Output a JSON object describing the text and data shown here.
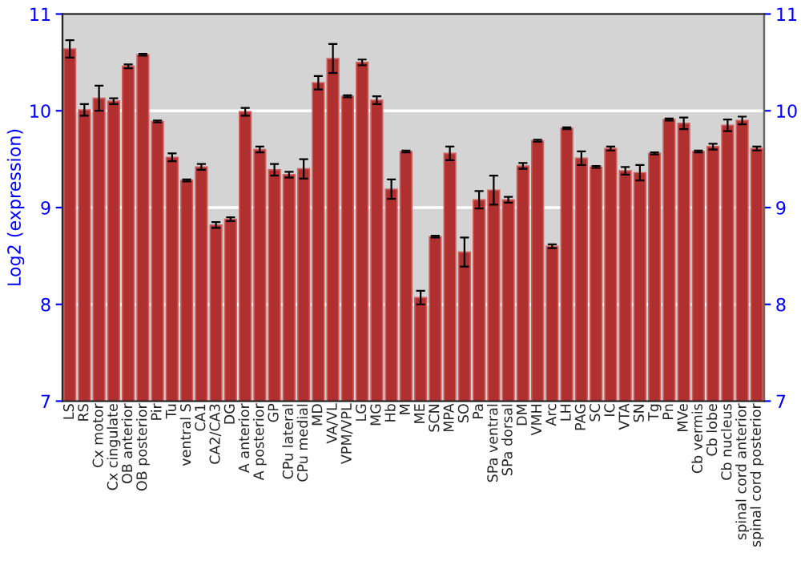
{
  "chart_data": {
    "type": "bar",
    "ylabel": "Log2 (expression)",
    "categories": [
      "LS",
      "RS",
      "Cx motor",
      "Cx cingulate",
      "OB anterior",
      "OB posterior",
      "Pir",
      "Tu",
      "ventral S",
      "CA1",
      "CA2/CA3",
      "DG",
      "A anterior",
      "A posterior",
      "GP",
      "CPu lateral",
      "CPu medial",
      "MD",
      "VA/VL",
      "VPM/VPL",
      "LG",
      "MG",
      "Hb",
      "M",
      "ME",
      "SCN",
      "MPA",
      "SO",
      "Pa",
      "SPa ventral",
      "SPa dorsal",
      "DM",
      "VMH",
      "Arc",
      "LH",
      "PAG",
      "SC",
      "IC",
      "VTA",
      "SN",
      "Tg",
      "Pn",
      "MVe",
      "Cb vermis",
      "Cb lobe",
      "Cb nucleus",
      "spinal cord anterior",
      "spinal cord posterior"
    ],
    "values": [
      10.64,
      10.01,
      10.13,
      10.1,
      10.46,
      10.58,
      9.89,
      9.52,
      9.28,
      9.42,
      8.82,
      8.88,
      9.99,
      9.6,
      9.39,
      9.34,
      9.4,
      10.29,
      10.54,
      10.15,
      10.5,
      10.11,
      9.19,
      9.58,
      8.07,
      8.7,
      9.56,
      8.54,
      9.08,
      9.18,
      9.08,
      9.43,
      9.69,
      8.6,
      9.82,
      9.51,
      9.42,
      9.61,
      9.38,
      9.36,
      9.56,
      9.91,
      9.87,
      9.58,
      9.63,
      9.85,
      9.9,
      9.61
    ],
    "errors": [
      0.09,
      0.06,
      0.13,
      0.03,
      0.02,
      0.01,
      0.01,
      0.04,
      0.01,
      0.03,
      0.03,
      0.02,
      0.04,
      0.03,
      0.06,
      0.03,
      0.1,
      0.07,
      0.15,
      0.01,
      0.03,
      0.04,
      0.1,
      0.01,
      0.07,
      0.01,
      0.07,
      0.15,
      0.09,
      0.15,
      0.03,
      0.03,
      0.01,
      0.02,
      0.01,
      0.07,
      0.01,
      0.02,
      0.04,
      0.08,
      0.01,
      0.01,
      0.06,
      0.01,
      0.03,
      0.06,
      0.04,
      0.02
    ],
    "color": "#b03030",
    "ylim": [
      7,
      11
    ],
    "yticks": [
      7,
      8,
      9,
      10,
      11
    ],
    "y2lim": [
      7,
      11
    ],
    "y2ticks": [
      7,
      8,
      9,
      10,
      11
    ],
    "grid": "y"
  }
}
